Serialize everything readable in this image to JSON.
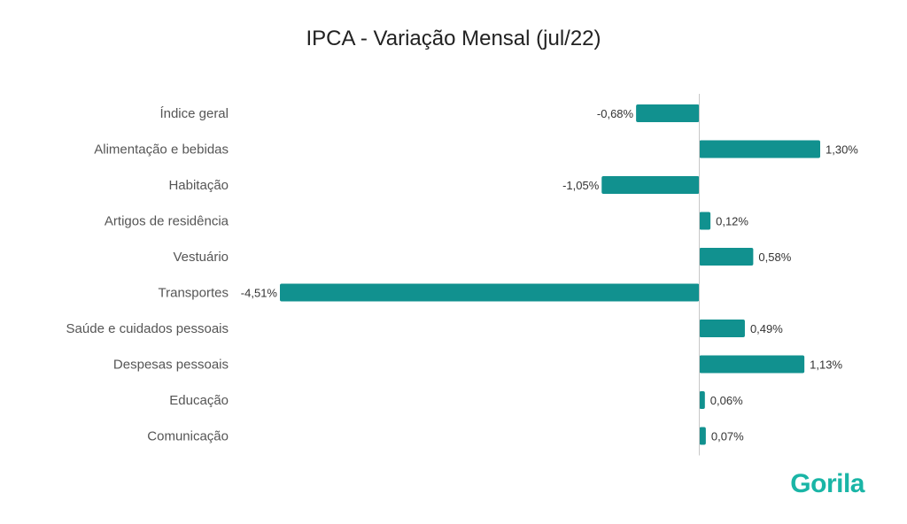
{
  "chart_data": {
    "type": "bar",
    "orientation": "horizontal",
    "title": "IPCA - Variação Mensal (jul/22)",
    "categories": [
      "Índice geral",
      "Alimentação e bebidas",
      "Habitação",
      "Artigos de residência",
      "Vestuário",
      "Transportes",
      "Saúde e cuidados pessoais",
      "Despesas pessoais",
      "Educação",
      "Comunicação"
    ],
    "values": [
      -0.68,
      1.3,
      -1.05,
      0.12,
      0.58,
      -4.51,
      0.49,
      1.13,
      0.06,
      0.07
    ],
    "value_labels": [
      "-0,68%",
      "1,30%",
      "-1,05%",
      "0,12%",
      "0,58%",
      "-4,51%",
      "0,49%",
      "1,13%",
      "0,06%",
      "0,07%"
    ],
    "xlim": [
      -4.51,
      1.3
    ],
    "bar_color": "#11918f",
    "grid": false,
    "legend": "none"
  },
  "brand": {
    "logo_text": "Gorila",
    "logo_color": "#1ab5a6"
  }
}
